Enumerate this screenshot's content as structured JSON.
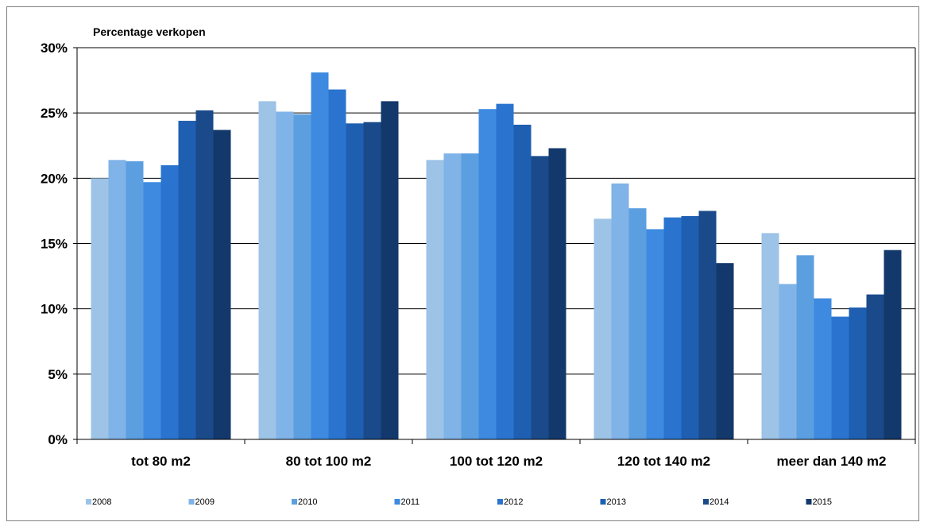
{
  "chart_data": {
    "type": "bar",
    "ylabel": "Percentage verkopen",
    "xlabel": "",
    "ylim": [
      0,
      30
    ],
    "yticks": [
      0,
      5,
      10,
      15,
      20,
      25,
      30
    ],
    "yticks_labels": [
      "0%",
      "5%",
      "10%",
      "15%",
      "20%",
      "25%",
      "30%"
    ],
    "grid": true,
    "legend_position": "bottom",
    "categories": [
      "tot 80 m2",
      "80 tot 100 m2",
      "100 tot 120 m2",
      "120 tot 140 m2",
      "meer dan 140 m2"
    ],
    "series": [
      {
        "name": "2008",
        "color": "#9dc3e6",
        "values": [
          20.0,
          25.9,
          21.4,
          16.9,
          15.8
        ]
      },
      {
        "name": "2009",
        "color": "#80b3e8",
        "values": [
          21.4,
          25.1,
          21.9,
          19.6,
          11.9
        ]
      },
      {
        "name": "2010",
        "color": "#5c9fe0",
        "values": [
          21.3,
          24.9,
          21.9,
          17.7,
          14.1
        ]
      },
      {
        "name": "2011",
        "color": "#3d8ae0",
        "values": [
          19.7,
          28.1,
          25.3,
          16.1,
          10.8
        ]
      },
      {
        "name": "2012",
        "color": "#2a74cf",
        "values": [
          21.0,
          26.8,
          25.7,
          17.0,
          9.4
        ]
      },
      {
        "name": "2013",
        "color": "#1e5fb2",
        "values": [
          24.4,
          24.2,
          24.1,
          17.1,
          10.1
        ]
      },
      {
        "name": "2014",
        "color": "#1a4a8a",
        "values": [
          25.2,
          24.3,
          21.7,
          17.5,
          11.1
        ]
      },
      {
        "name": "2015",
        "color": "#13386b",
        "values": [
          23.7,
          25.9,
          22.3,
          13.5,
          14.5
        ]
      }
    ]
  }
}
